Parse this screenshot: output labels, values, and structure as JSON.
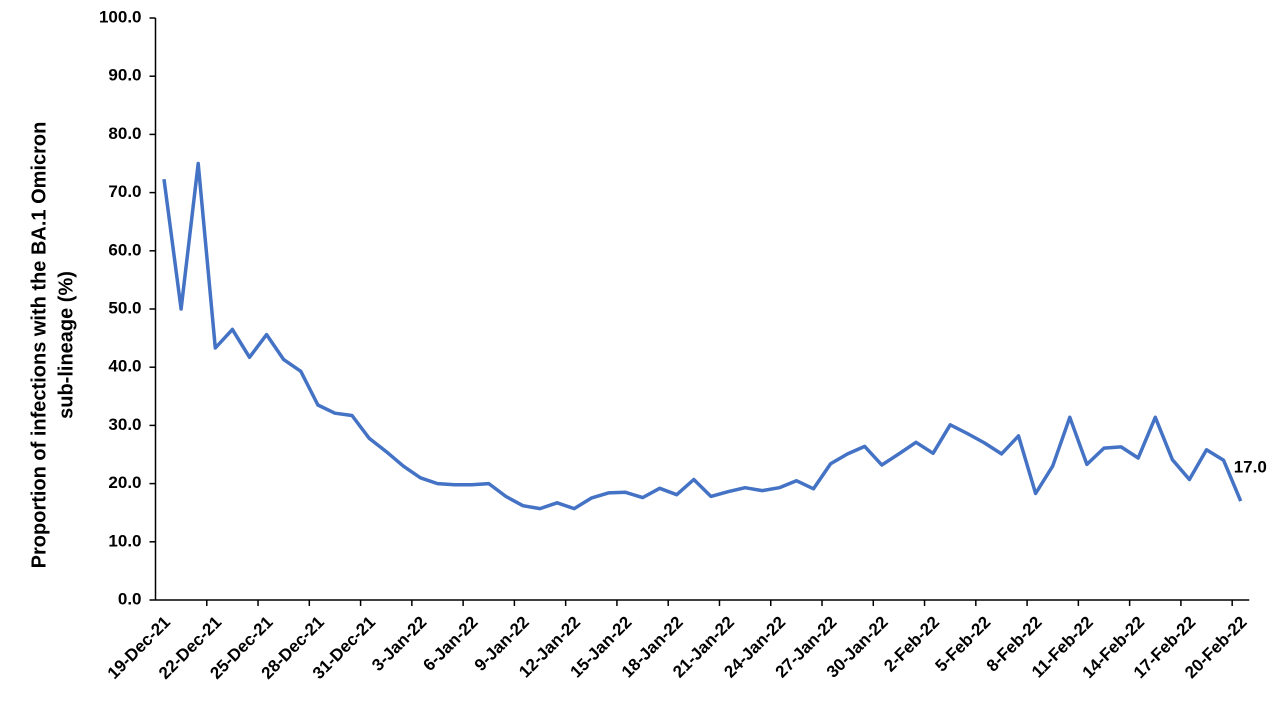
{
  "chart_data": {
    "type": "line",
    "y_label": [
      "Proportion of infections with the BA.1 Omicron",
      "sub-lineage (%)"
    ],
    "categories": [
      "19-Dec-21",
      null,
      null,
      "22-Dec-21",
      null,
      null,
      "25-Dec-21",
      null,
      null,
      "28-Dec-21",
      null,
      null,
      "31-Dec-21",
      null,
      null,
      "3-Jan-22",
      null,
      null,
      "6-Jan-22",
      null,
      null,
      "9-Jan-22",
      null,
      null,
      "12-Jan-22",
      null,
      null,
      "15-Jan-22",
      null,
      null,
      "18-Jan-22",
      null,
      null,
      "21-Jan-22",
      null,
      null,
      "24-Jan-22",
      null,
      null,
      "27-Jan-22",
      null,
      null,
      "30-Jan-22",
      null,
      null,
      "2-Feb-22",
      null,
      null,
      "5-Feb-22",
      null,
      null,
      "8-Feb-22",
      null,
      null,
      "11-Feb-22",
      null,
      null,
      "14-Feb-22",
      null,
      null,
      "17-Feb-22",
      null,
      null,
      "20-Feb-22"
    ],
    "values": [
      72.3,
      50.0,
      75.0,
      43.3,
      46.5,
      41.7,
      45.6,
      41.3,
      39.3,
      33.5,
      32.1,
      31.7,
      27.8,
      25.5,
      23.0,
      21.0,
      20.0,
      19.8,
      19.8,
      20.0,
      17.8,
      16.2,
      15.7,
      16.7,
      15.7,
      17.5,
      18.4,
      18.5,
      17.6,
      19.2,
      18.1,
      20.7,
      17.8,
      18.6,
      19.3,
      18.8,
      19.3,
      20.5,
      19.1,
      23.4,
      25.1,
      26.4,
      23.2,
      25.1,
      27.1,
      25.2,
      30.1,
      28.6,
      27.0,
      25.1,
      28.2,
      18.3,
      23.0,
      31.4,
      23.3,
      26.1,
      26.3,
      24.4,
      31.4,
      24.1,
      20.7,
      25.8,
      24.0,
      17.0
    ],
    "value_labels": [
      null,
      null,
      null,
      null,
      null,
      null,
      null,
      null,
      null,
      null,
      null,
      null,
      null,
      null,
      null,
      null,
      null,
      null,
      null,
      null,
      null,
      null,
      null,
      null,
      null,
      null,
      null,
      null,
      null,
      null,
      null,
      null,
      null,
      null,
      null,
      null,
      null,
      null,
      null,
      null,
      null,
      null,
      null,
      null,
      null,
      null,
      null,
      null,
      null,
      null,
      null,
      null,
      null,
      null,
      null,
      null,
      null,
      null,
      null,
      null,
      null,
      null,
      null,
      "17.0"
    ],
    "color": "#4472c4",
    "ylim": [
      0,
      100
    ],
    "yticks": [
      {
        "value": 0,
        "label": "0.0"
      },
      {
        "value": 10,
        "label": "10.0"
      },
      {
        "value": 20,
        "label": "20.0"
      },
      {
        "value": 30,
        "label": "30.0"
      },
      {
        "value": 40,
        "label": "40.0"
      },
      {
        "value": 50,
        "label": "50.0"
      },
      {
        "value": 60,
        "label": "60.0"
      },
      {
        "value": 70,
        "label": "70.0"
      },
      {
        "value": 80,
        "label": "80.0"
      },
      {
        "value": 90,
        "label": "90.0"
      },
      {
        "value": 100,
        "label": "100.0"
      }
    ],
    "grid": false
  }
}
